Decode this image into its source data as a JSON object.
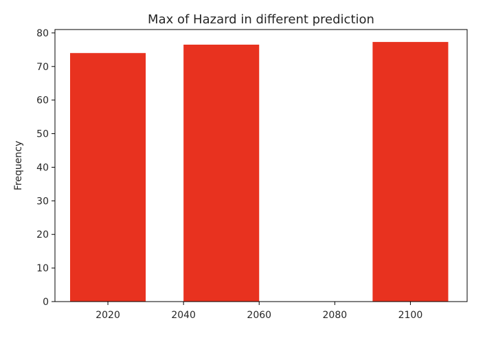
{
  "chart_data": {
    "type": "bar",
    "title": "Max of Hazard in different prediction",
    "xlabel": "",
    "ylabel": "Frequency",
    "x": [
      2020,
      2050,
      2100
    ],
    "values": [
      74,
      76.5,
      77.3
    ],
    "bar_width": 20,
    "xlim": [
      2006,
      2115
    ],
    "ylim": [
      0,
      81
    ],
    "xticks": [
      2020,
      2040,
      2060,
      2080,
      2100
    ],
    "yticks": [
      0,
      10,
      20,
      30,
      40,
      50,
      60,
      70,
      80
    ],
    "bar_color": "#e8321f",
    "grid": false,
    "legend": "none"
  }
}
